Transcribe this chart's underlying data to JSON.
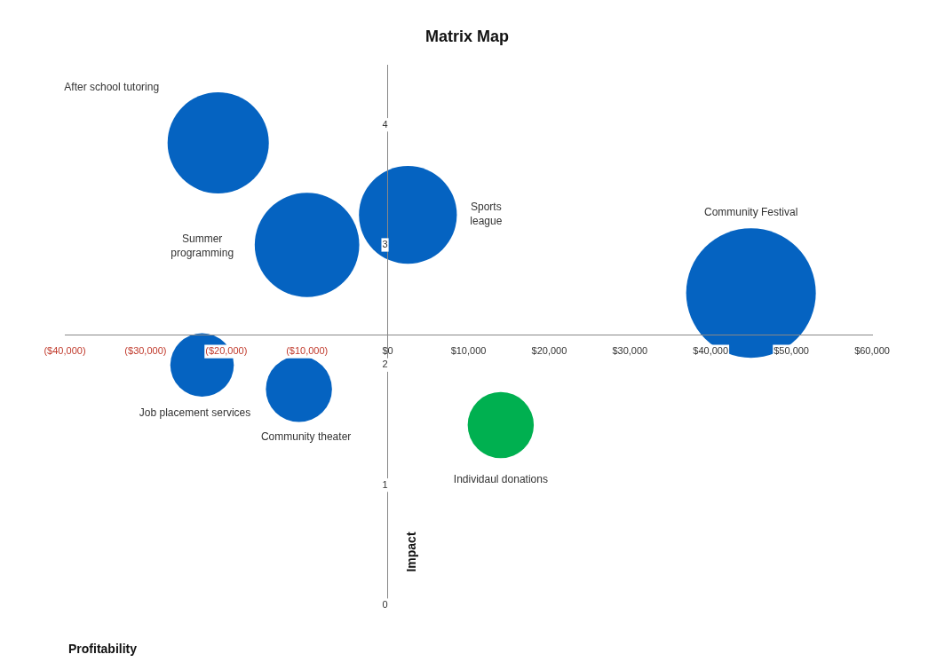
{
  "chart_data": {
    "type": "bubble",
    "title": "Matrix Map",
    "xlabel": "Profitability",
    "ylabel": "Impact",
    "xlim": [
      -40000,
      60000
    ],
    "ylim": [
      0,
      4.5
    ],
    "xticks": [
      {
        "value": -40000,
        "label": "($40,000)"
      },
      {
        "value": -30000,
        "label": "($30,000)"
      },
      {
        "value": -20000,
        "label": "($20,000)"
      },
      {
        "value": -10000,
        "label": "($10,000)"
      },
      {
        "value": 0,
        "label": "$0"
      },
      {
        "value": 10000,
        "label": "$10,000"
      },
      {
        "value": 20000,
        "label": "$20,000"
      },
      {
        "value": 30000,
        "label": "$30,000"
      },
      {
        "value": 40000,
        "label": "$40,000"
      },
      {
        "value": 50000,
        "label": "$50,000"
      },
      {
        "value": 60000,
        "label": "$60,000"
      }
    ],
    "yticks": [
      0,
      1,
      2,
      3,
      4
    ],
    "grid": false,
    "legend": false,
    "series": [
      {
        "name": "After school tutoring",
        "color": "#0563c1",
        "x": [
          -21000
        ],
        "values": [
          3.85
        ],
        "sizes": [
          0.61
        ]
      },
      {
        "name": "Summer programming",
        "color": "#0563c1",
        "x": [
          -10000
        ],
        "values": [
          3.0
        ],
        "sizes": [
          0.65
        ]
      },
      {
        "name": "Sports league",
        "color": "#0563c1",
        "x": [
          2500
        ],
        "values": [
          3.25
        ],
        "sizes": [
          0.57
        ]
      },
      {
        "name": "Community Festival",
        "color": "#0563c1",
        "x": [
          45000
        ],
        "values": [
          2.6
        ],
        "sizes": [
          1
        ]
      },
      {
        "name": "Job placement services",
        "color": "#0563c1",
        "x": [
          -23000
        ],
        "values": [
          2.0
        ],
        "sizes": [
          0.24
        ]
      },
      {
        "name": "Community theater",
        "color": "#0563c1",
        "x": [
          -11000
        ],
        "values": [
          1.8
        ],
        "sizes": [
          0.26
        ]
      },
      {
        "name": "Individaul donations",
        "color": "#00b050",
        "x": [
          14000
        ],
        "values": [
          1.5
        ],
        "sizes": [
          0.26
        ]
      }
    ]
  }
}
